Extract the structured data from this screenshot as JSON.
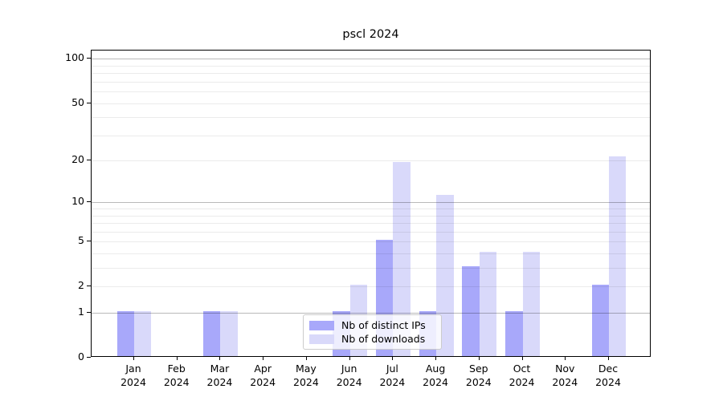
{
  "chart_data": {
    "type": "bar",
    "title": "pscl 2024",
    "categories": [
      "Jan",
      "Feb",
      "Mar",
      "Apr",
      "May",
      "Jun",
      "Jul",
      "Aug",
      "Sep",
      "Oct",
      "Nov",
      "Dec"
    ],
    "year_label": "2024",
    "series": [
      {
        "name": "Nb of distinct IPs",
        "color": "#a8a8fa",
        "values": [
          1,
          0,
          1,
          0,
          0,
          1,
          5,
          1,
          3,
          1,
          0,
          2
        ]
      },
      {
        "name": "Nb of downloads",
        "color": "#d9d9fa",
        "values": [
          1,
          0,
          1,
          0,
          0,
          2,
          19,
          11,
          4,
          4,
          0,
          21
        ]
      }
    ],
    "yscale": "log1p",
    "ylim": [
      0,
      114
    ],
    "yticks": [
      0,
      1,
      2,
      5,
      10,
      20,
      50,
      100
    ],
    "grid": true,
    "grid_major": [
      1,
      10,
      100
    ],
    "grid_minor": [
      2,
      3,
      4,
      5,
      6,
      7,
      8,
      9,
      20,
      30,
      40,
      50,
      60,
      70,
      80,
      90
    ],
    "legend_position": "lower center",
    "axis_color": "#000000",
    "background_color": "#ffffff"
  }
}
